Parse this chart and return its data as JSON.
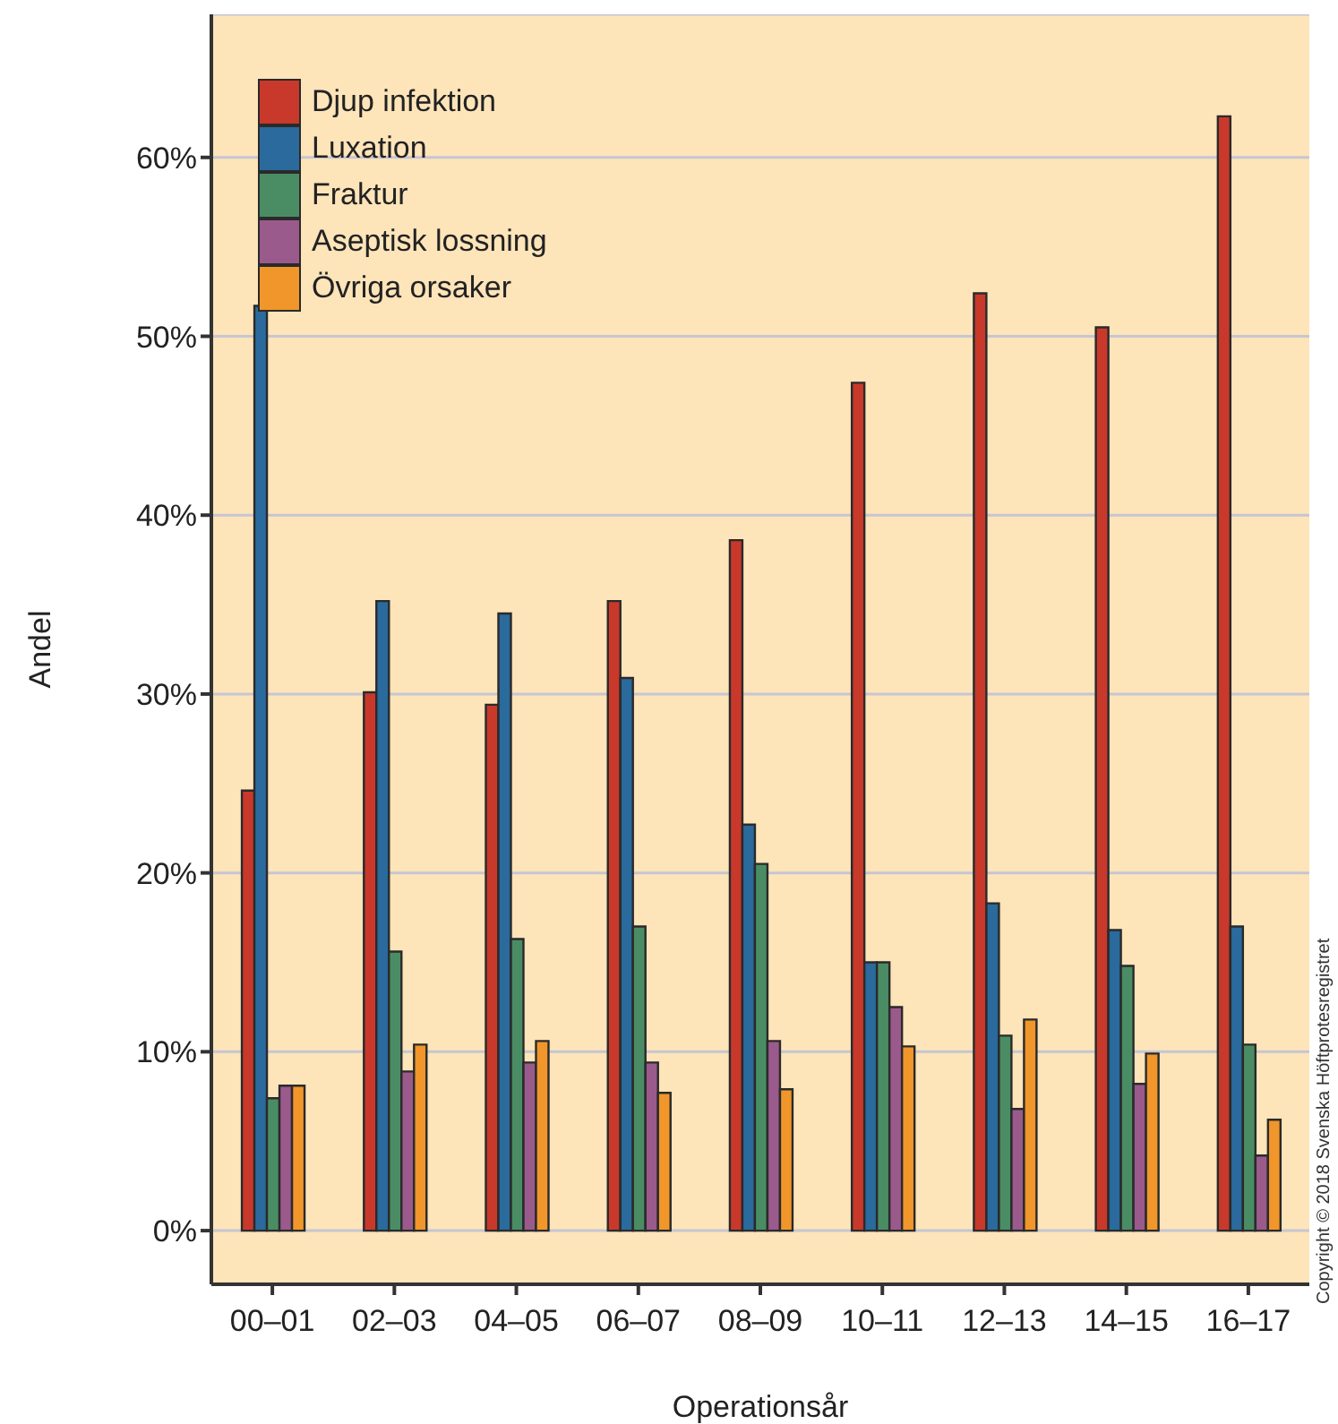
{
  "chart_data": {
    "type": "bar",
    "xlabel": "Operationsår",
    "ylabel": "Andel",
    "categories": [
      "00–01",
      "02–03",
      "04–05",
      "06–07",
      "08–09",
      "10–11",
      "12–13",
      "14–15",
      "16–17"
    ],
    "series": [
      {
        "name": "Djup infektion",
        "color": "#c8392b",
        "values": [
          24.6,
          30.1,
          29.4,
          35.2,
          38.6,
          47.4,
          52.4,
          50.5,
          62.3
        ]
      },
      {
        "name": "Luxation",
        "color": "#2a6a9c",
        "values": [
          51.7,
          35.2,
          34.5,
          30.9,
          22.7,
          15.0,
          18.3,
          16.8,
          17.0
        ]
      },
      {
        "name": "Fraktur",
        "color": "#4a8d64",
        "values": [
          7.4,
          15.6,
          16.3,
          17.0,
          20.5,
          15.0,
          10.9,
          14.8,
          10.4
        ]
      },
      {
        "name": "Aseptisk lossning",
        "color": "#9a5a8c",
        "values": [
          8.1,
          8.9,
          9.4,
          9.4,
          10.6,
          12.5,
          6.8,
          8.2,
          4.2
        ]
      },
      {
        "name": "Övriga orsaker",
        "color": "#f0962a",
        "values": [
          8.1,
          10.4,
          10.6,
          7.7,
          7.9,
          10.3,
          11.8,
          9.9,
          6.2
        ]
      }
    ],
    "ylim": [
      -3,
      68
    ],
    "yticks": [
      {
        "value": 0,
        "label": "0%"
      },
      {
        "value": 10,
        "label": "10%"
      },
      {
        "value": 20,
        "label": "20%"
      },
      {
        "value": 30,
        "label": "30%"
      },
      {
        "value": 40,
        "label": "40%"
      },
      {
        "value": 50,
        "label": "50%"
      },
      {
        "value": 60,
        "label": "60%"
      }
    ],
    "grid": "y",
    "legend": "top left",
    "annotations": [
      "Copyright © 2018 Svenska Höftprotesregistret"
    ]
  }
}
